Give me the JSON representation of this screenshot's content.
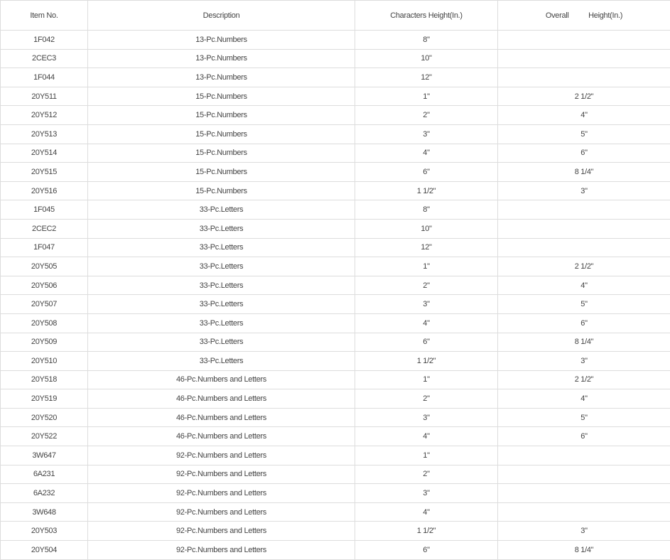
{
  "headers": [
    "Item No.",
    "Description",
    "Characters Height(In.)",
    "Overall          Height(In.)"
  ],
  "rows": [
    [
      "1F042",
      "13-Pc.Numbers",
      "8\"",
      ""
    ],
    [
      "2CEC3",
      "13-Pc.Numbers",
      "10\"",
      ""
    ],
    [
      "1F044",
      "13-Pc.Numbers",
      "12\"",
      ""
    ],
    [
      "20Y511",
      "15-Pc.Numbers",
      "1\"",
      "2 1/2\""
    ],
    [
      "20Y512",
      "15-Pc.Numbers",
      "2\"",
      "4\""
    ],
    [
      "20Y513",
      "15-Pc.Numbers",
      "3\"",
      "5\""
    ],
    [
      "20Y514",
      "15-Pc.Numbers",
      "4\"",
      "6\""
    ],
    [
      "20Y515",
      "15-Pc.Numbers",
      "6\"",
      "8 1/4\""
    ],
    [
      "20Y516",
      "15-Pc.Numbers",
      "1 1/2\"",
      "3\""
    ],
    [
      "1F045",
      "33-Pc.Letters",
      "8\"",
      ""
    ],
    [
      "2CEC2",
      "33-Pc.Letters",
      "10\"",
      ""
    ],
    [
      "1F047",
      "33-Pc.Letters",
      "12\"",
      ""
    ],
    [
      "20Y505",
      "33-Pc.Letters",
      "1\"",
      "2 1/2\""
    ],
    [
      "20Y506",
      "33-Pc.Letters",
      "2\"",
      "4\""
    ],
    [
      "20Y507",
      "33-Pc.Letters",
      "3\"",
      "5\""
    ],
    [
      "20Y508",
      "33-Pc.Letters",
      "4\"",
      "6\""
    ],
    [
      "20Y509",
      "33-Pc.Letters",
      "6\"",
      "8 1/4\""
    ],
    [
      "20Y510",
      "33-Pc.Letters",
      "1 1/2\"",
      "3\""
    ],
    [
      "20Y518",
      "46-Pc.Numbers and Letters",
      "1\"",
      "2 1/2\""
    ],
    [
      "20Y519",
      "46-Pc.Numbers and Letters",
      "2\"",
      "4\""
    ],
    [
      "20Y520",
      "46-Pc.Numbers and Letters",
      "3\"",
      "5\""
    ],
    [
      "20Y522",
      "46-Pc.Numbers and Letters",
      "4\"",
      "6\""
    ],
    [
      "3W647",
      "92-Pc.Numbers and Letters",
      "1\"",
      ""
    ],
    [
      "6A231",
      "92-Pc.Numbers and Letters",
      "2\"",
      ""
    ],
    [
      "6A232",
      "92-Pc.Numbers and Letters",
      "3\"",
      ""
    ],
    [
      "3W648",
      "92-Pc.Numbers and Letters",
      "4\"",
      ""
    ],
    [
      "20Y503",
      "92-Pc.Numbers and Letters",
      "1 1/2\"",
      "3\""
    ],
    [
      "20Y504",
      "92-Pc.Numbers and Letters",
      "6\"",
      "8 1/4\""
    ]
  ]
}
